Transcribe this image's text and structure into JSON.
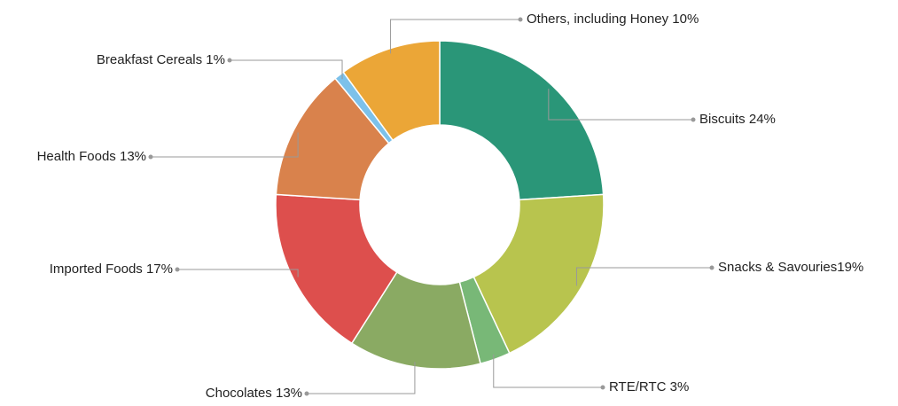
{
  "chart_data": {
    "type": "donut",
    "categories": [
      "Biscuits 24%",
      "Snacks & Savouries19%",
      "RTE/RTC 3%",
      "Chocolates 13%",
      "Imported Foods 17%",
      "Health Foods 13%",
      "Breakfast Cereals 1%",
      "Others, including Honey 10%"
    ],
    "values": [
      24,
      19,
      3,
      13,
      17,
      13,
      1,
      10
    ],
    "colors": [
      "#2a9678",
      "#b8c44e",
      "#78b877",
      "#8aaa63",
      "#dd4f4d",
      "#d9824c",
      "#7cc1ea",
      "#eba637"
    ]
  }
}
